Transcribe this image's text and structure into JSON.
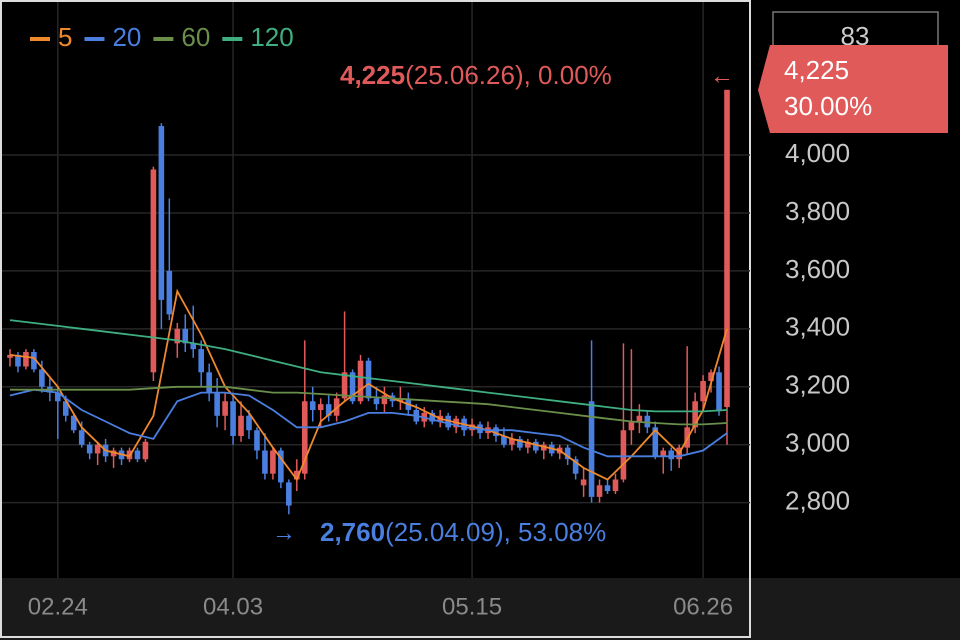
{
  "chart_data": {
    "type": "candlestick",
    "up_color": "#e05a5a",
    "down_color": "#4a7fe0",
    "categories": [
      null,
      null,
      null,
      null,
      null,
      null,
      "02.24",
      null,
      null,
      null,
      null,
      null,
      null,
      null,
      null,
      null,
      null,
      null,
      null,
      null,
      null,
      null,
      null,
      null,
      null,
      null,
      null,
      null,
      "04.03",
      null,
      null,
      null,
      null,
      null,
      null,
      null,
      null,
      null,
      null,
      null,
      null,
      null,
      null,
      null,
      null,
      null,
      null,
      null,
      null,
      null,
      null,
      null,
      null,
      null,
      null,
      null,
      null,
      null,
      "05.15",
      null,
      null,
      null,
      null,
      null,
      null,
      null,
      null,
      null,
      null,
      null,
      null,
      null,
      null,
      null,
      null,
      null,
      null,
      null,
      null,
      null,
      null,
      null,
      null,
      null,
      null,
      null,
      null,
      "06.26",
      null,
      null,
      null
    ],
    "candles": [
      [
        3300,
        3330,
        3270,
        3310
      ],
      [
        3310,
        3320,
        3250,
        3270
      ],
      [
        3270,
        3330,
        3260,
        3320
      ],
      [
        3320,
        3330,
        3250,
        3260
      ],
      [
        3260,
        3290,
        3180,
        3200
      ],
      [
        3200,
        3230,
        3150,
        3180
      ],
      [
        3180,
        3200,
        3020,
        3150
      ],
      [
        3150,
        3170,
        3080,
        3100
      ],
      [
        3100,
        3110,
        3040,
        3050
      ],
      [
        3050,
        3080,
        2990,
        3000
      ],
      [
        3000,
        3010,
        2950,
        2970
      ],
      [
        2970,
        3010,
        2930,
        3000
      ],
      [
        3000,
        3020,
        2940,
        2960
      ],
      [
        2960,
        2990,
        2920,
        2980
      ],
      [
        2980,
        2990,
        2930,
        2950
      ],
      [
        2950,
        2990,
        2940,
        2980
      ],
      [
        2980,
        2990,
        2940,
        2950
      ],
      [
        2950,
        3020,
        2940,
        3010
      ],
      [
        3250,
        3960,
        3220,
        3950
      ],
      [
        4100,
        4110,
        3400,
        3500
      ],
      [
        3600,
        3850,
        3430,
        3450
      ],
      [
        3350,
        3420,
        3300,
        3400
      ],
      [
        3400,
        3450,
        3320,
        3350
      ],
      [
        3350,
        3480,
        3300,
        3330
      ],
      [
        3330,
        3360,
        3200,
        3250
      ],
      [
        3250,
        3280,
        3150,
        3180
      ],
      [
        3180,
        3230,
        3060,
        3100
      ],
      [
        3100,
        3180,
        3050,
        3150
      ],
      [
        3150,
        3170,
        3000,
        3030
      ],
      [
        3030,
        3150,
        3010,
        3100
      ],
      [
        3100,
        3120,
        3020,
        3050
      ],
      [
        3050,
        3060,
        2950,
        2980
      ],
      [
        2980,
        3040,
        2880,
        2900
      ],
      [
        2900,
        2990,
        2880,
        2980
      ],
      [
        2980,
        2990,
        2850,
        2870
      ],
      [
        2870,
        2880,
        2760,
        2790
      ],
      [
        2880,
        2950,
        2840,
        2910
      ],
      [
        2900,
        3360,
        2880,
        3150
      ],
      [
        3150,
        3200,
        3080,
        3120
      ],
      [
        3120,
        3160,
        3060,
        3140
      ],
      [
        3140,
        3170,
        3080,
        3100
      ],
      [
        3100,
        3180,
        3080,
        3160
      ],
      [
        3160,
        3460,
        3150,
        3250
      ],
      [
        3250,
        3260,
        3140,
        3150
      ],
      [
        3150,
        3310,
        3140,
        3290
      ],
      [
        3290,
        3300,
        3150,
        3160
      ],
      [
        3160,
        3200,
        3120,
        3140
      ],
      [
        3140,
        3200,
        3110,
        3170
      ],
      [
        3170,
        3180,
        3130,
        3150
      ],
      [
        3150,
        3200,
        3120,
        3160
      ],
      [
        3160,
        3180,
        3100,
        3120
      ],
      [
        3120,
        3140,
        3070,
        3080
      ],
      [
        3080,
        3130,
        3060,
        3110
      ],
      [
        3110,
        3120,
        3070,
        3080
      ],
      [
        3080,
        3120,
        3060,
        3100
      ],
      [
        3100,
        3110,
        3050,
        3060
      ],
      [
        3060,
        3100,
        3040,
        3090
      ],
      [
        3090,
        3100,
        3030,
        3050
      ],
      [
        3050,
        3090,
        3030,
        3070
      ],
      [
        3070,
        3080,
        3020,
        3040
      ],
      [
        3040,
        3080,
        3020,
        3060
      ],
      [
        3060,
        3070,
        3010,
        3030
      ],
      [
        3030,
        3060,
        2990,
        3000
      ],
      [
        3000,
        3040,
        2980,
        3020
      ],
      [
        3020,
        3030,
        2980,
        2990
      ],
      [
        2990,
        3020,
        2970,
        3010
      ],
      [
        3010,
        3020,
        2970,
        2980
      ],
      [
        2980,
        3010,
        2950,
        3000
      ],
      [
        3000,
        3010,
        2960,
        2970
      ],
      [
        2970,
        3000,
        2950,
        2990
      ],
      [
        2990,
        3000,
        2930,
        2950
      ],
      [
        2950,
        2960,
        2880,
        2900
      ],
      [
        2860,
        2920,
        2820,
        2880
      ],
      [
        3150,
        3360,
        2800,
        2820
      ],
      [
        2820,
        2880,
        2800,
        2860
      ],
      [
        2860,
        2880,
        2830,
        2840
      ],
      [
        2840,
        2900,
        2830,
        2880
      ],
      [
        2880,
        3350,
        2870,
        3050
      ],
      [
        3050,
        3330,
        3000,
        3080
      ],
      [
        3080,
        3140,
        3040,
        3100
      ],
      [
        3100,
        3120,
        3040,
        3060
      ],
      [
        3060,
        3080,
        2950,
        2960
      ],
      [
        2960,
        2990,
        2900,
        2980
      ],
      [
        2980,
        2990,
        2910,
        2950
      ],
      [
        2950,
        3000,
        2920,
        2990
      ],
      [
        2990,
        3340,
        2970,
        3060
      ],
      [
        3060,
        3180,
        3040,
        3150
      ],
      [
        3150,
        3240,
        3120,
        3220
      ],
      [
        3220,
        3260,
        3180,
        3250
      ],
      [
        3250,
        3270,
        3100,
        3120
      ],
      [
        3130,
        4225,
        3000,
        4225
      ]
    ],
    "series": [
      {
        "name": "5",
        "color": "#f0892e",
        "x": [
          0,
          3,
          6,
          9,
          12,
          15,
          18,
          21,
          24,
          27,
          30,
          33,
          36,
          39,
          42,
          45,
          48,
          51,
          54,
          57,
          60,
          63,
          66,
          69,
          72,
          75,
          78,
          81,
          84,
          87,
          90
        ],
        "values": [
          3310,
          3300,
          3200,
          3060,
          2980,
          2960,
          3100,
          3530,
          3380,
          3200,
          3110,
          2990,
          2880,
          3080,
          3150,
          3210,
          3160,
          3130,
          3090,
          3070,
          3050,
          3020,
          3000,
          2980,
          2920,
          2880,
          2960,
          3050,
          2970,
          3120,
          3400
        ]
      },
      {
        "name": "20",
        "color": "#4a7fe0",
        "x": [
          0,
          3,
          6,
          9,
          12,
          15,
          18,
          21,
          24,
          27,
          30,
          33,
          36,
          39,
          42,
          45,
          48,
          51,
          54,
          57,
          60,
          63,
          66,
          69,
          72,
          75,
          78,
          81,
          84,
          87,
          90
        ],
        "values": [
          3170,
          3190,
          3180,
          3120,
          3080,
          3040,
          3020,
          3150,
          3180,
          3180,
          3170,
          3120,
          3060,
          3060,
          3080,
          3110,
          3110,
          3100,
          3080,
          3060,
          3050,
          3050,
          3040,
          3030,
          2990,
          2960,
          2960,
          2960,
          2960,
          2980,
          3040
        ]
      },
      {
        "name": "60",
        "color": "#6a8f4a",
        "x": [
          0,
          3,
          6,
          9,
          12,
          15,
          18,
          21,
          24,
          27,
          30,
          33,
          36,
          39,
          42,
          45,
          48,
          51,
          54,
          57,
          60,
          63,
          66,
          69,
          72,
          75,
          78,
          81,
          84,
          87,
          90
        ],
        "values": [
          3190,
          3190,
          3190,
          3190,
          3190,
          3190,
          3195,
          3200,
          3200,
          3200,
          3190,
          3180,
          3180,
          3175,
          3170,
          3165,
          3160,
          3155,
          3150,
          3145,
          3140,
          3130,
          3120,
          3110,
          3100,
          3090,
          3080,
          3075,
          3070,
          3070,
          3075
        ]
      },
      {
        "name": "120",
        "color": "#3fae80",
        "x": [
          0,
          3,
          6,
          9,
          12,
          15,
          18,
          21,
          24,
          27,
          30,
          33,
          36,
          39,
          42,
          45,
          48,
          51,
          54,
          57,
          60,
          63,
          66,
          69,
          72,
          75,
          78,
          81,
          84,
          87,
          90
        ],
        "values": [
          3430,
          3420,
          3410,
          3400,
          3390,
          3380,
          3370,
          3360,
          3345,
          3330,
          3310,
          3290,
          3270,
          3250,
          3240,
          3230,
          3220,
          3210,
          3200,
          3190,
          3180,
          3170,
          3160,
          3150,
          3140,
          3130,
          3120,
          3115,
          3115,
          3115,
          3120
        ]
      }
    ],
    "ylim": [
      2540,
      4535
    ],
    "yticks": [
      {
        "value": 2800,
        "label": "2,800"
      },
      {
        "value": 3000,
        "label": "3,000"
      },
      {
        "value": 3200,
        "label": "3,200"
      },
      {
        "value": 3400,
        "label": "3,400"
      },
      {
        "value": 3600,
        "label": "3,600"
      },
      {
        "value": 3800,
        "label": "3,800"
      },
      {
        "value": 4000,
        "label": "4,000"
      }
    ],
    "grid": true,
    "annotations": {
      "high": {
        "price": "4,225",
        "detail": "(25.06.26), 0.00%"
      },
      "low": {
        "price": "2,760",
        "detail": "(25.04.09), 53.08%"
      }
    },
    "price_tag": {
      "price": "4,225",
      "change": "30.00%"
    },
    "top_box": "83"
  }
}
